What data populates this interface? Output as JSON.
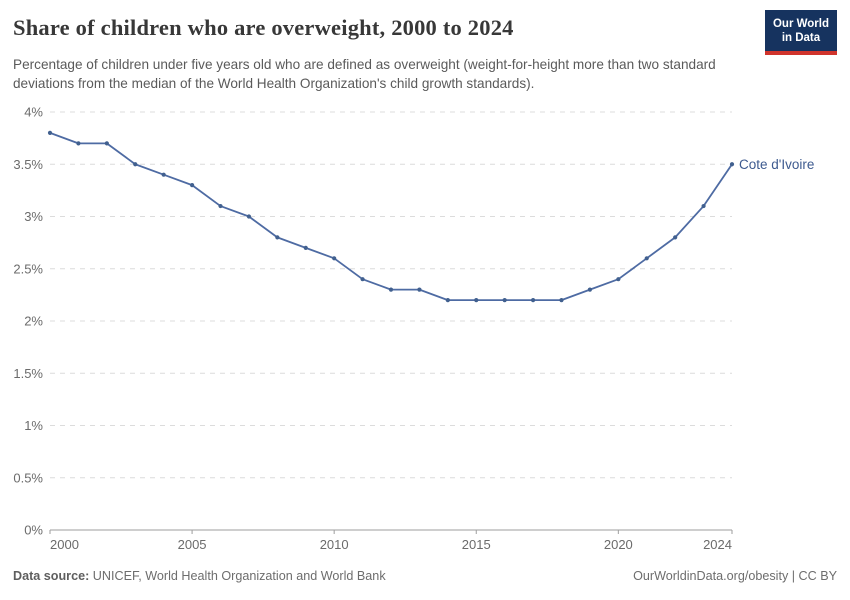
{
  "header": {
    "title": "Share of children who are overweight, 2000 to 2024",
    "subtitle": "Percentage of children under five years old who are defined as overweight (weight-for-height more than two standard deviations from the median of the World Health Organization's child growth standards).",
    "logo": {
      "line1": "Our World",
      "line2": "in Data",
      "bg_color": "#16335f",
      "accent_color": "#d0342c"
    }
  },
  "chart_data": {
    "type": "line",
    "title": "Share of children who are overweight, 2000 to 2024",
    "x": [
      2000,
      2001,
      2002,
      2003,
      2004,
      2005,
      2006,
      2007,
      2008,
      2009,
      2010,
      2011,
      2012,
      2013,
      2014,
      2015,
      2016,
      2017,
      2018,
      2019,
      2020,
      2021,
      2022,
      2023,
      2024
    ],
    "series": [
      {
        "name": "Cote d'Ivoire",
        "color": "#4e6ba3",
        "marker_color": "#41608f",
        "label_color": "#3d5a8f",
        "values": [
          3.8,
          3.7,
          3.7,
          3.5,
          3.4,
          3.3,
          3.1,
          3.0,
          2.8,
          2.7,
          2.6,
          2.4,
          2.3,
          2.3,
          2.2,
          2.2,
          2.2,
          2.2,
          2.2,
          2.3,
          2.4,
          2.6,
          2.8,
          3.1,
          3.5
        ]
      }
    ],
    "xlabel": "",
    "ylabel": "",
    "ylim": [
      0,
      4
    ],
    "xlim": [
      2000,
      2024
    ],
    "yticks": [
      0,
      0.5,
      1,
      1.5,
      2,
      2.5,
      3,
      3.5,
      4
    ],
    "ytick_labels": [
      "0%",
      "0.5%",
      "1%",
      "1.5%",
      "2%",
      "2.5%",
      "3%",
      "3.5%",
      "4%"
    ],
    "xticks": [
      2000,
      2005,
      2010,
      2015,
      2020,
      2024
    ],
    "xtick_labels": [
      "2000",
      "2005",
      "2010",
      "2015",
      "2020",
      "2024"
    ],
    "grid": "horizontal-dashed",
    "legend_position": "end-of-line-label"
  },
  "footer": {
    "datasource_label": "Data source:",
    "datasource_value": "UNICEF, World Health Organization and World Bank",
    "attribution": "OurWorldinData.org/obesity | CC BY"
  }
}
